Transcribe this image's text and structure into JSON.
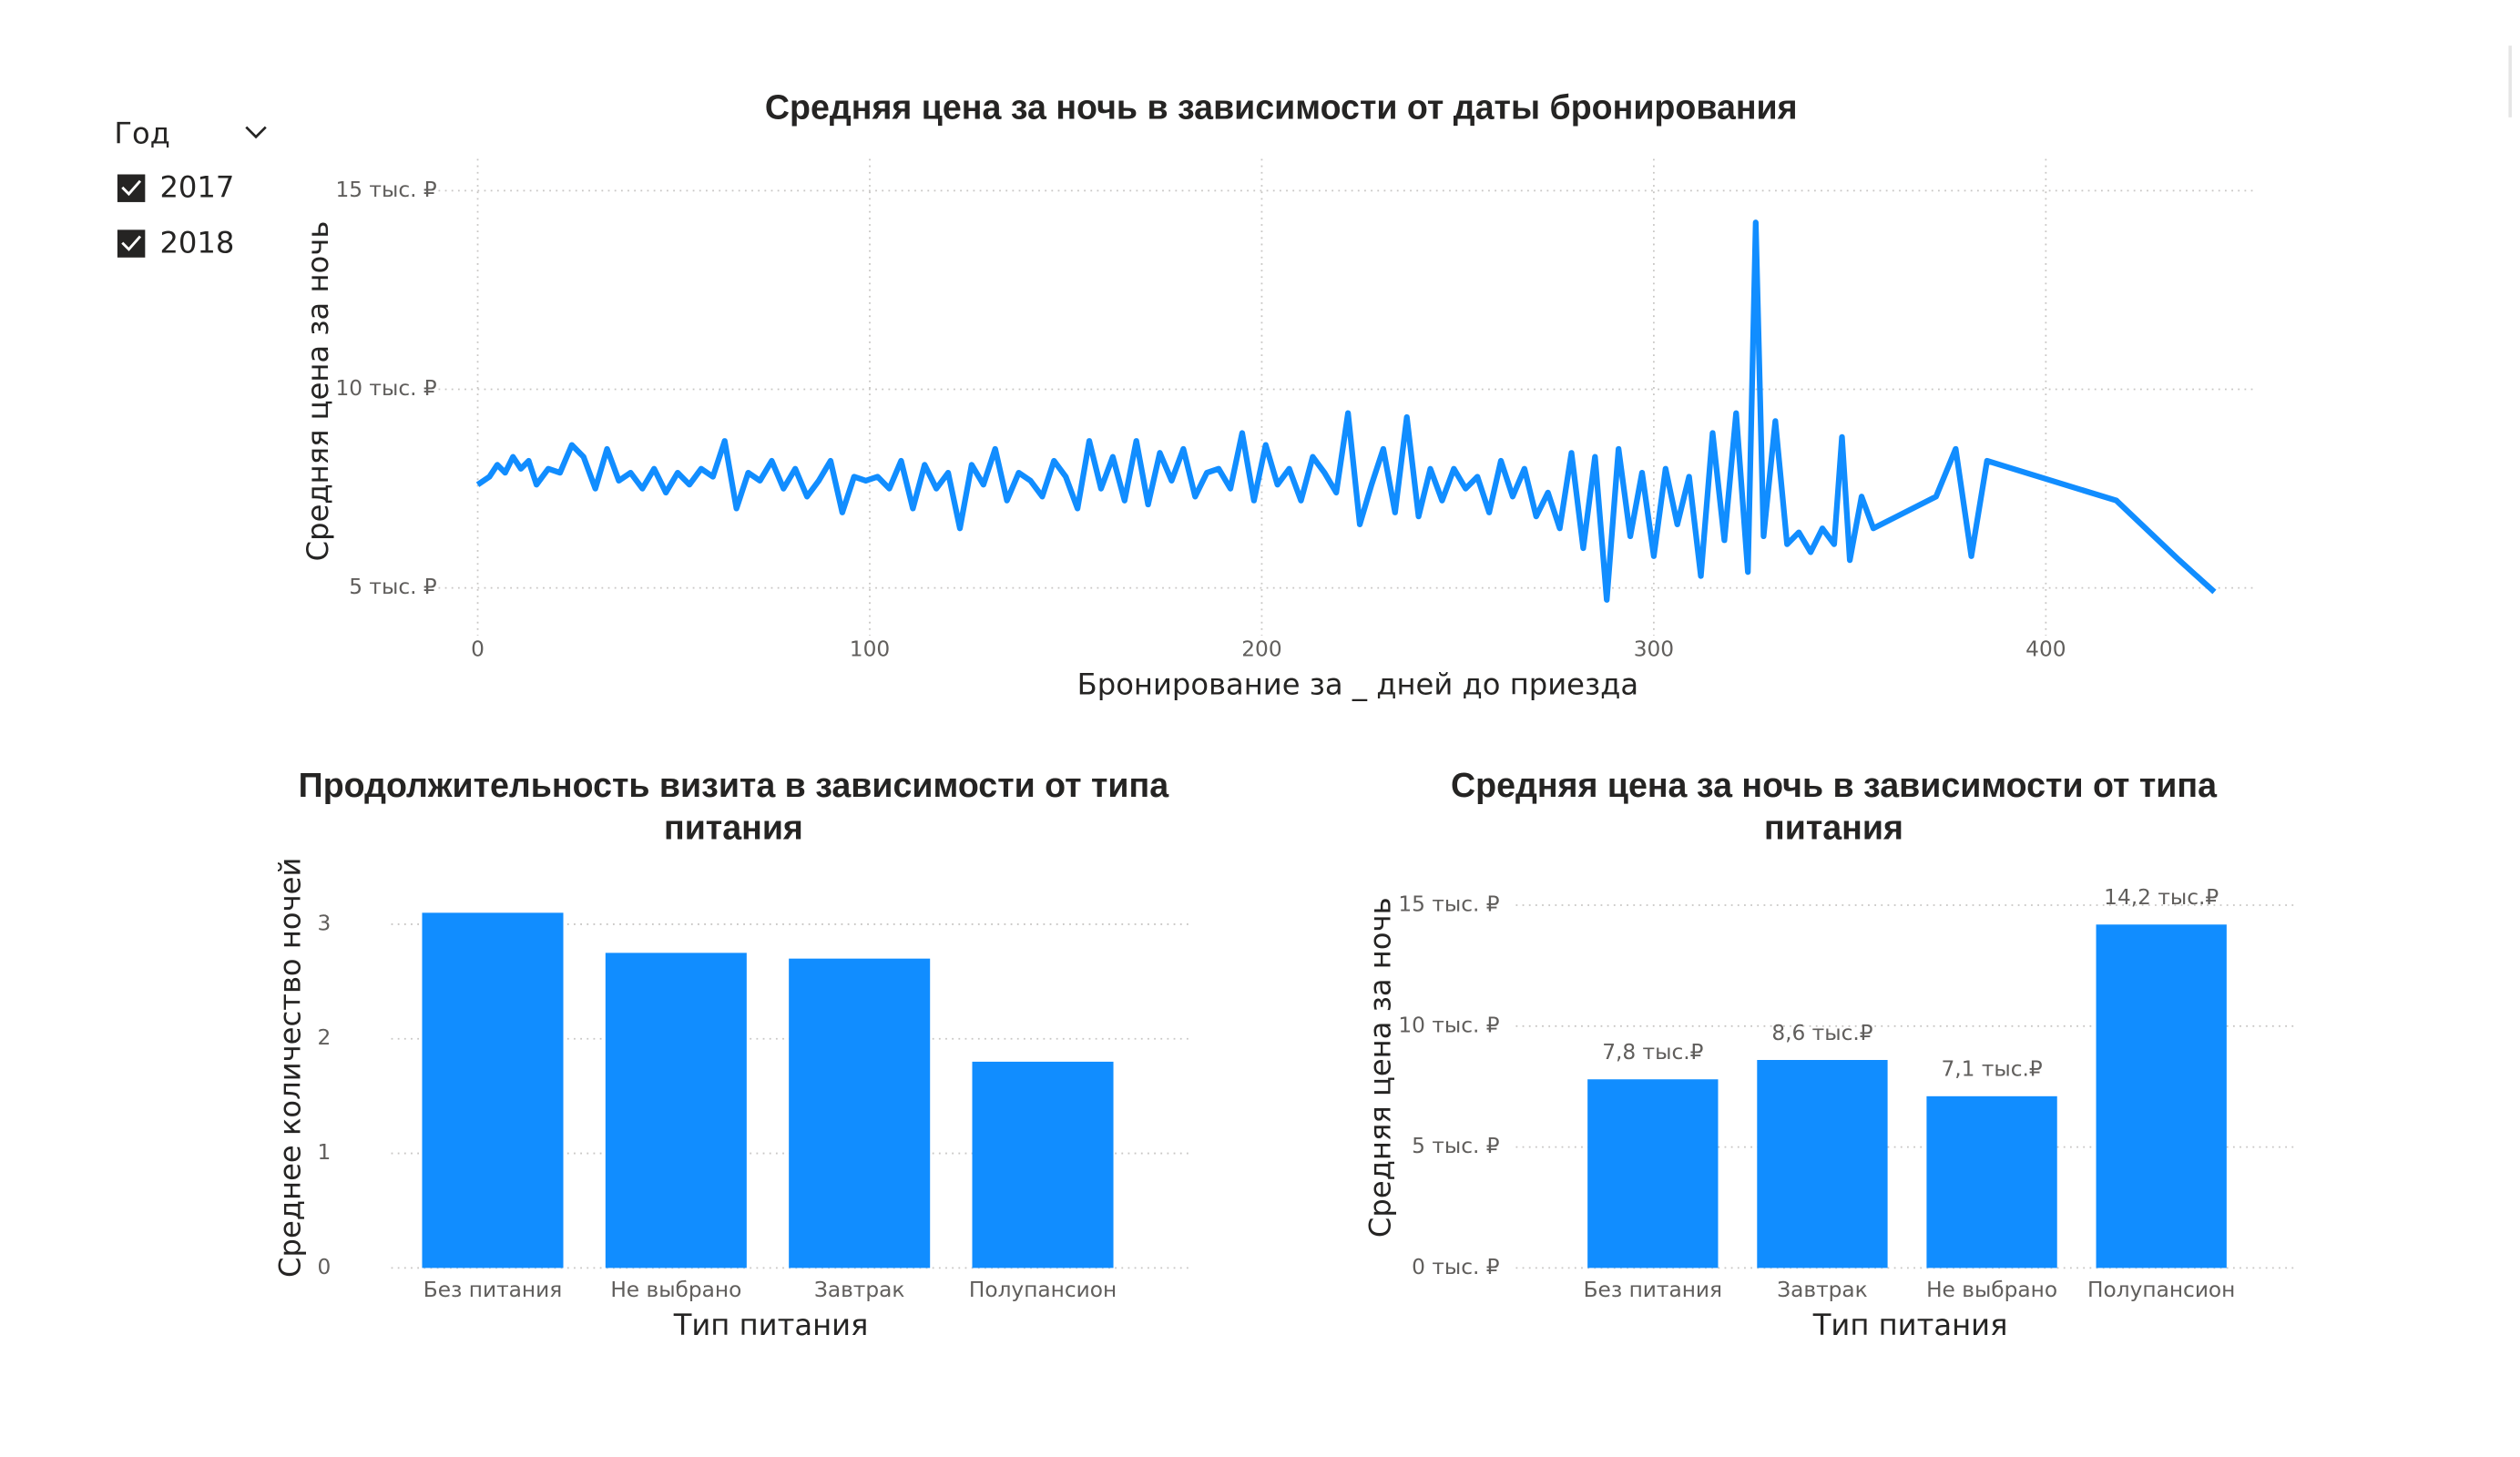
{
  "slicer": {
    "title": "Год",
    "items": [
      "2017",
      "2018"
    ],
    "checked": [
      true,
      true
    ]
  },
  "chart_data": [
    {
      "type": "line",
      "title": "Средняя цена за ночь в зависимости от даты бронирования",
      "x_label": "Бронирование за _ дней до приезда",
      "y_label": "Средняя цена за ночь",
      "color": "#118DFF",
      "grid": true,
      "x": [
        0,
        3,
        5,
        7,
        9,
        11,
        13,
        15,
        18,
        21,
        24,
        27,
        30,
        33,
        36,
        39,
        42,
        45,
        48,
        51,
        54,
        57,
        60,
        63,
        66,
        69,
        72,
        75,
        78,
        81,
        84,
        87,
        90,
        93,
        96,
        99,
        102,
        105,
        108,
        111,
        114,
        117,
        120,
        123,
        126,
        129,
        132,
        135,
        138,
        141,
        144,
        147,
        150,
        153,
        156,
        159,
        162,
        165,
        168,
        171,
        174,
        177,
        180,
        183,
        186,
        189,
        192,
        195,
        198,
        201,
        204,
        207,
        210,
        213,
        216,
        219,
        222,
        225,
        228,
        231,
        234,
        237,
        240,
        243,
        246,
        249,
        252,
        255,
        258,
        261,
        264,
        267,
        270,
        273,
        276,
        279,
        282,
        285,
        288,
        291,
        294,
        297,
        300,
        303,
        306,
        309,
        312,
        315,
        318,
        321,
        324,
        326,
        328,
        331,
        334,
        337,
        340,
        343,
        346,
        348,
        350,
        353,
        356,
        362,
        372,
        377,
        381,
        385,
        418,
        434,
        443
      ],
      "values": [
        7600,
        7800,
        8100,
        7900,
        8300,
        8000,
        8200,
        7600,
        8000,
        7900,
        8600,
        8300,
        7500,
        8500,
        7700,
        7900,
        7500,
        8000,
        7400,
        7900,
        7600,
        8000,
        7800,
        8700,
        7000,
        7900,
        7700,
        8200,
        7500,
        8000,
        7300,
        7700,
        8200,
        6900,
        7800,
        7700,
        7800,
        7500,
        8200,
        7000,
        8100,
        7500,
        7900,
        6500,
        8100,
        7600,
        8500,
        7200,
        7900,
        7700,
        7300,
        8200,
        7800,
        7000,
        8700,
        7500,
        8300,
        7200,
        8700,
        7100,
        8400,
        7700,
        8500,
        7300,
        7900,
        8000,
        7500,
        8900,
        7200,
        8600,
        7600,
        8000,
        7200,
        8300,
        7900,
        7400,
        9400,
        6600,
        7600,
        8500,
        6900,
        9300,
        6800,
        8000,
        7200,
        8000,
        7500,
        7800,
        6900,
        8200,
        7300,
        8000,
        6800,
        7400,
        6500,
        8400,
        6000,
        8300,
        4700,
        8500,
        6300,
        7900,
        5800,
        8000,
        6600,
        7800,
        5300,
        8900,
        6200,
        9400,
        5400,
        14200,
        6300,
        9200,
        6100,
        6400,
        5900,
        6500,
        6100,
        8800,
        5700,
        7300,
        6500,
        6800,
        7300,
        8500,
        5800,
        8200,
        7200,
        5700,
        4900
      ],
      "xlim": [
        -10,
        454
      ],
      "xticks": [
        0,
        100,
        200,
        300,
        400
      ],
      "ylim": [
        3800,
        15800
      ],
      "yticks": [
        {
          "value": 5000,
          "label": "5 тыс. ₽"
        },
        {
          "value": 10000,
          "label": "10 тыс. ₽"
        },
        {
          "value": 15000,
          "label": "15 тыс. ₽"
        }
      ]
    },
    {
      "type": "bar",
      "title": "Продолжительность визита в зависимости от типа питания",
      "x_label": "Тип питания",
      "y_label": "Среднее количество ночей",
      "color": "#118DFF",
      "grid": true,
      "categories": [
        "Без питания",
        "Не выбрано",
        "Завтрак",
        "Полупансион"
      ],
      "values": [
        3.1,
        2.75,
        2.7,
        1.8
      ],
      "ylim": [
        0,
        3.3
      ],
      "yticks": [
        0,
        1,
        2,
        3
      ]
    },
    {
      "type": "bar",
      "title": "Средняя цена за ночь в зависимости от типа питания",
      "x_label": "Тип питания",
      "y_label": "Средняя цена за ночь",
      "color": "#118DFF",
      "grid": true,
      "categories": [
        "Без питания",
        "Завтрак",
        "Не выбрано",
        "Полупансион"
      ],
      "values": [
        7800,
        8600,
        7100,
        14200
      ],
      "value_labels": [
        "7,8 тыс.₽",
        "8,6 тыс.₽",
        "7,1 тыс.₽",
        "14,2 тыс.₽"
      ],
      "ylim": [
        0,
        15500
      ],
      "yticks": [
        {
          "value": 0,
          "label": "0 тыс. ₽"
        },
        {
          "value": 5000,
          "label": "5 тыс. ₽"
        },
        {
          "value": 10000,
          "label": "10 тыс. ₽"
        },
        {
          "value": 15000,
          "label": "15 тыс. ₽"
        }
      ]
    }
  ]
}
